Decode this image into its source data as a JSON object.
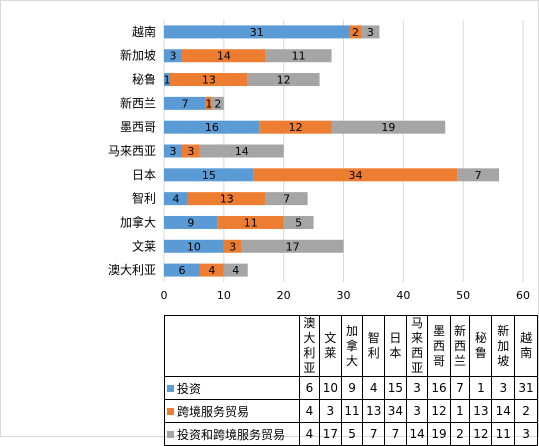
{
  "colors": {
    "invest": "#5b9bd5",
    "service": "#ed7d31",
    "both": "#a5a5a5",
    "grid": "#d9d9d9"
  },
  "chart_data": {
    "type": "bar",
    "orientation": "horizontal",
    "stacked": true,
    "categories": [
      "澳大利亚",
      "文莱",
      "加拿大",
      "智利",
      "日本",
      "马来西亚",
      "墨西哥",
      "新西兰",
      "秘鲁",
      "新加坡",
      "越南"
    ],
    "table_headers": [
      "澳大\n利亚",
      "文莱",
      "加拿\n大",
      "智利",
      "日本",
      "马来\n西亚",
      "墨西\n哥",
      "新西\n兰",
      "秘鲁",
      "新加\n坡",
      "越南"
    ],
    "series": [
      {
        "name": "投资",
        "values": [
          6,
          10,
          9,
          4,
          15,
          3,
          16,
          7,
          1,
          3,
          31
        ]
      },
      {
        "name": "跨境服务贸易",
        "values": [
          4,
          3,
          11,
          13,
          34,
          3,
          12,
          1,
          13,
          14,
          2
        ]
      },
      {
        "name": "投资和跨境服务贸易",
        "values": [
          4,
          17,
          5,
          7,
          7,
          14,
          19,
          2,
          12,
          11,
          3
        ]
      }
    ],
    "xlim": [
      0,
      60
    ],
    "xticks": [
      0,
      10,
      20,
      30,
      40,
      50,
      60
    ],
    "grid": true,
    "legend": "data-table-below"
  }
}
